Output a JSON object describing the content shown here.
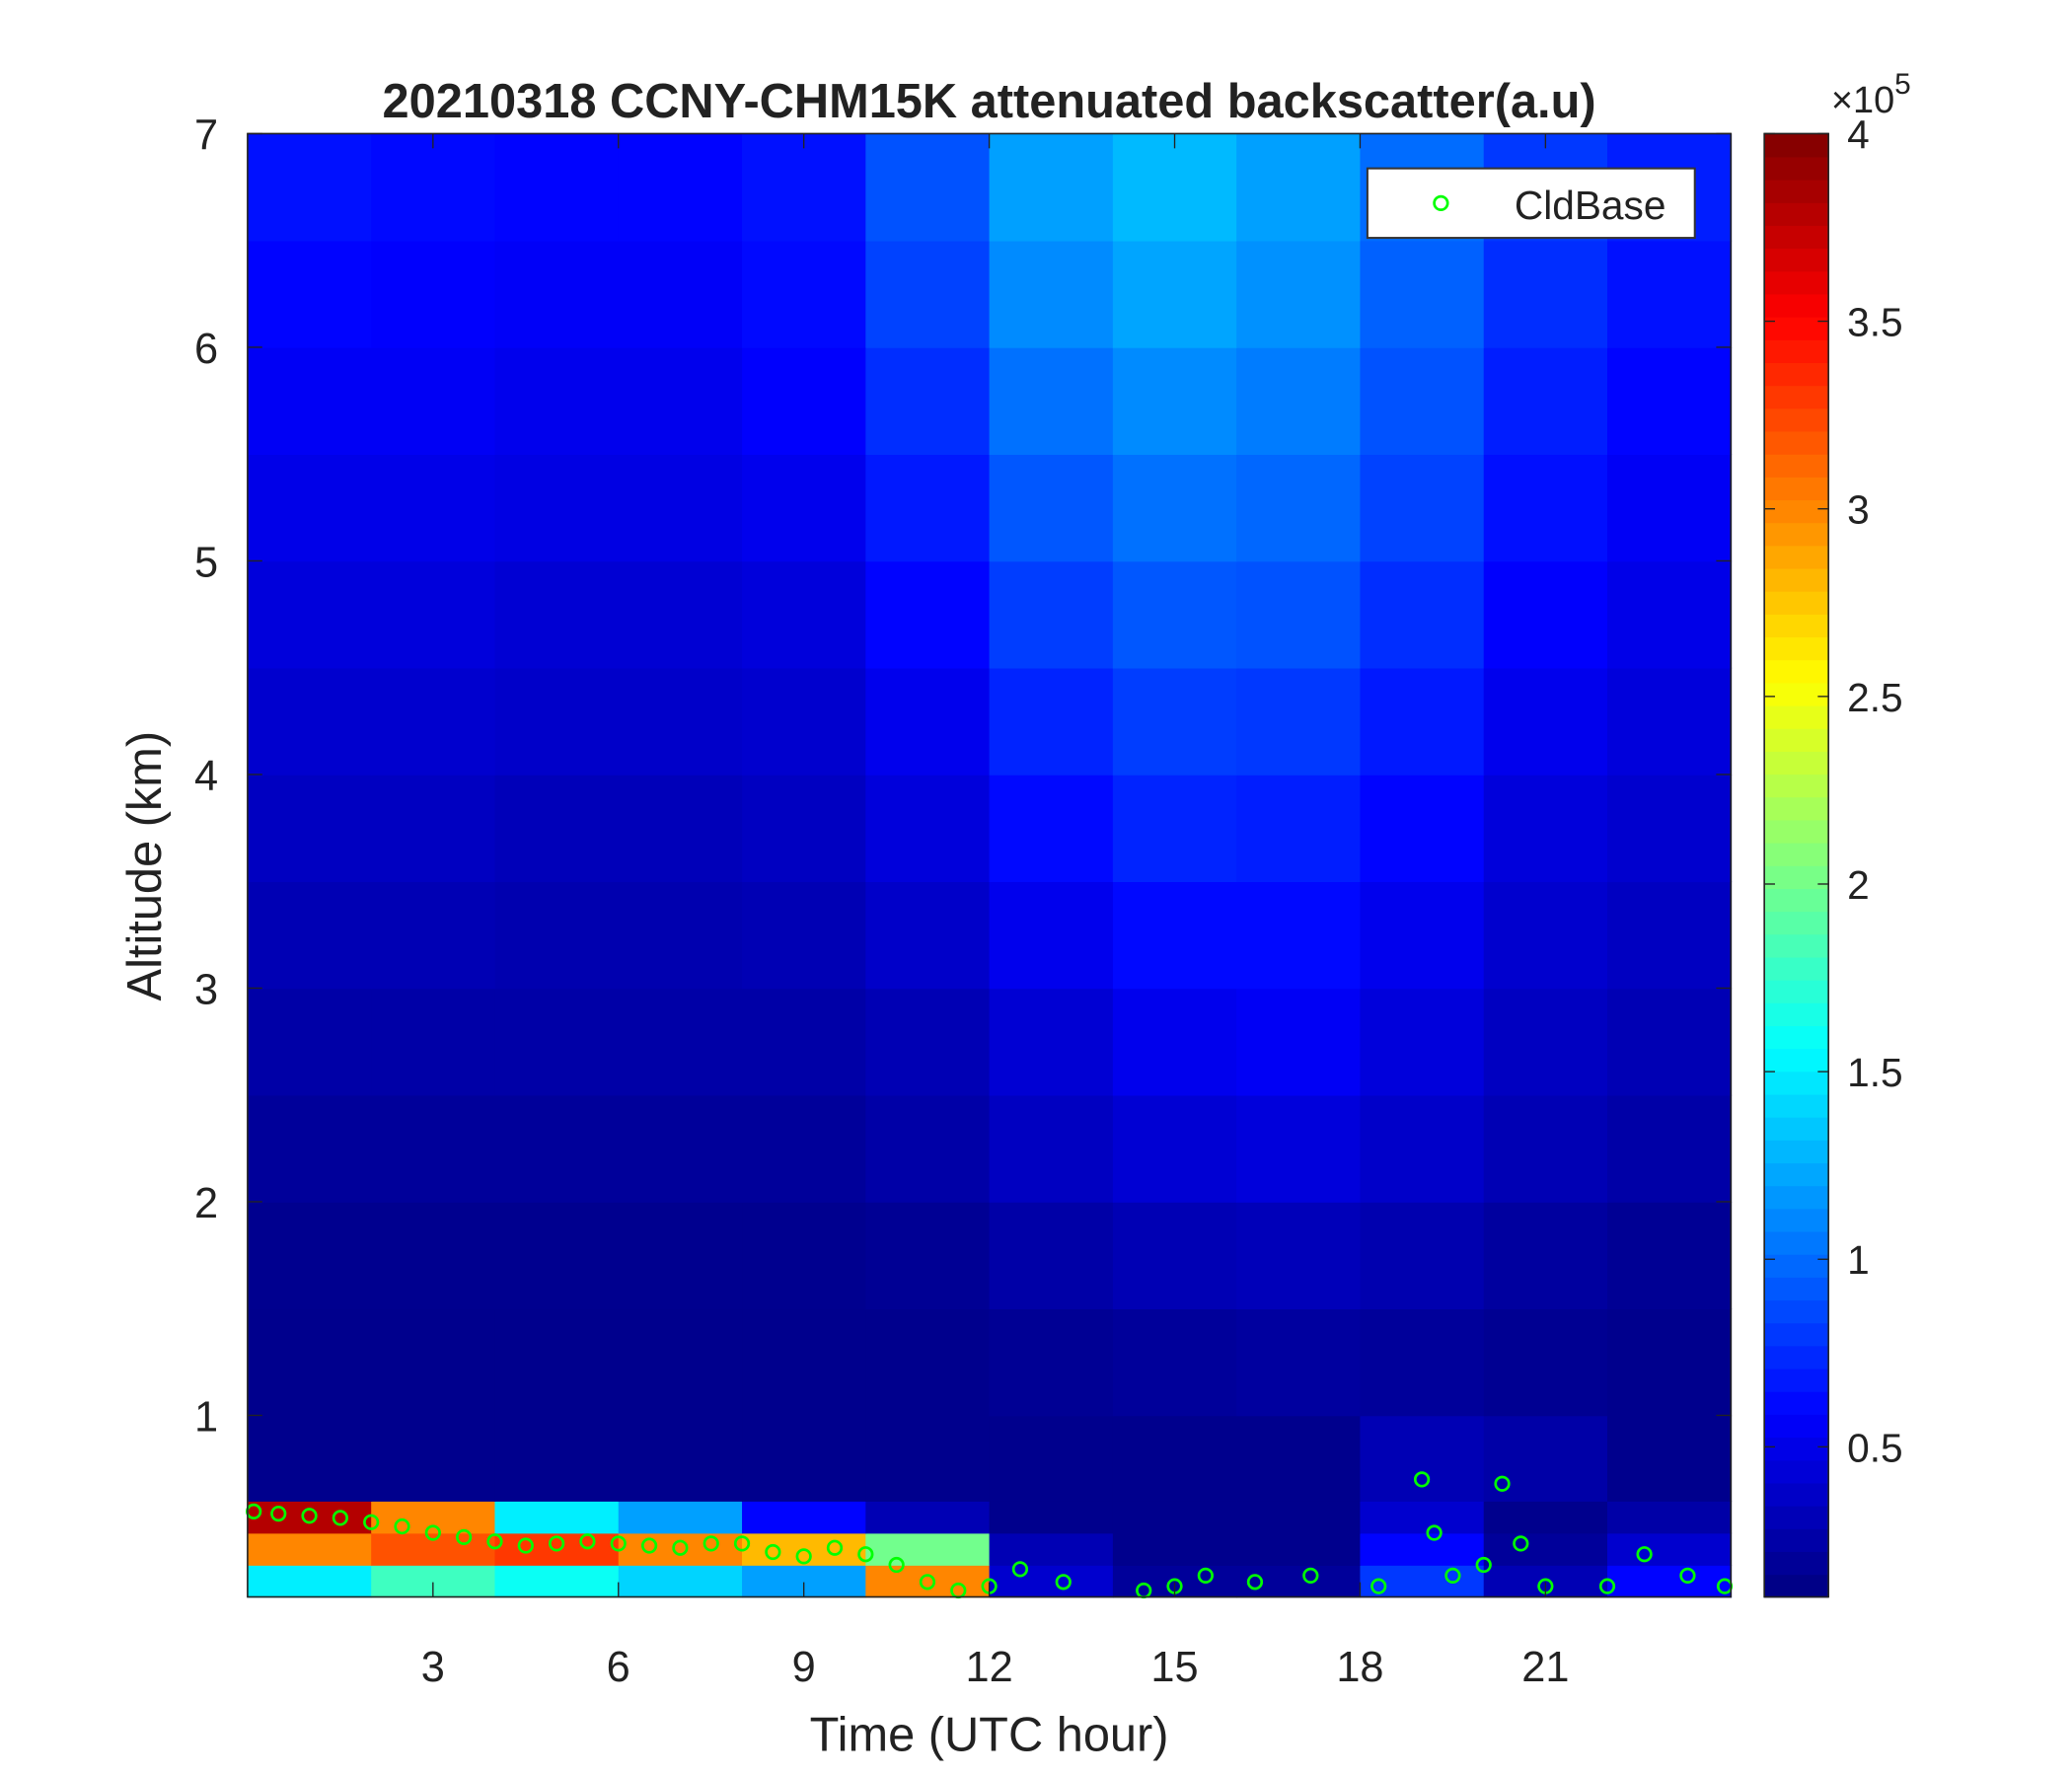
{
  "chart_data": {
    "type": "heatmap",
    "title": "20210318 CCNY-CHM15K attenuated backscatter(a.u)",
    "x_label": "Time (UTC hour)",
    "y_label": "Altitude (km)",
    "xlim": [
      0,
      24
    ],
    "xticks": [
      3,
      6,
      9,
      12,
      15,
      18,
      21
    ],
    "ylim": [
      0.15,
      7
    ],
    "yticks": [
      1,
      2,
      3,
      4,
      5,
      6,
      7
    ],
    "colormap": "jet",
    "clim": [
      10000,
      400000
    ],
    "cticks": [
      {
        "value": 50000,
        "label": "0.5"
      },
      {
        "value": 100000,
        "label": "1"
      },
      {
        "value": 150000,
        "label": "1.5"
      },
      {
        "value": 200000,
        "label": "2"
      },
      {
        "value": 250000,
        "label": "2.5"
      },
      {
        "value": 300000,
        "label": "3"
      },
      {
        "value": 350000,
        "label": "3.5"
      },
      {
        "value": 400000,
        "label": "4"
      }
    ],
    "colorbar_scale_base": "×10",
    "colorbar_scale_exponent": "5",
    "x_edges": [
      0,
      2,
      4,
      6,
      8,
      10,
      12,
      14,
      16,
      18,
      20,
      22,
      24
    ],
    "y_edges": [
      0.15,
      0.3,
      0.45,
      0.6,
      1,
      1.5,
      2,
      2.5,
      3,
      3.5,
      4,
      4.5,
      5,
      5.5,
      6,
      6.5,
      7
    ],
    "z": [
      [
        150000,
        180000,
        160000,
        140000,
        120000,
        300000,
        40000,
        20000,
        20000,
        80000,
        30000,
        60000
      ],
      [
        300000,
        320000,
        330000,
        300000,
        280000,
        200000,
        30000,
        15000,
        15000,
        60000,
        20000,
        40000
      ],
      [
        380000,
        300000,
        150000,
        120000,
        60000,
        30000,
        15000,
        15000,
        15000,
        40000,
        15000,
        25000
      ],
      [
        15000,
        15000,
        15000,
        15000,
        15000,
        15000,
        15000,
        15000,
        15000,
        30000,
        25000,
        15000
      ],
      [
        15000,
        15000,
        15000,
        15000,
        15000,
        15000,
        18000,
        20000,
        22000,
        20000,
        17000,
        15000
      ],
      [
        16000,
        16000,
        16000,
        16000,
        16000,
        18000,
        25000,
        30000,
        32000,
        28000,
        22000,
        18000
      ],
      [
        20000,
        20000,
        20000,
        20000,
        20000,
        25000,
        35000,
        42000,
        45000,
        38000,
        30000,
        25000
      ],
      [
        25000,
        25000,
        25000,
        25000,
        25000,
        30000,
        42000,
        52000,
        55000,
        45000,
        35000,
        30000
      ],
      [
        30000,
        30000,
        28000,
        28000,
        30000,
        38000,
        52000,
        62000,
        62000,
        52000,
        40000,
        35000
      ],
      [
        35000,
        35000,
        32000,
        32000,
        35000,
        45000,
        62000,
        72000,
        70000,
        60000,
        45000,
        40000
      ],
      [
        40000,
        40000,
        38000,
        38000,
        40000,
        52000,
        72000,
        82000,
        80000,
        68000,
        52000,
        45000
      ],
      [
        45000,
        45000,
        42000,
        42000,
        45000,
        60000,
        82000,
        92000,
        90000,
        76000,
        58000,
        50000
      ],
      [
        50000,
        50000,
        48000,
        48000,
        52000,
        68000,
        92000,
        102000,
        98000,
        84000,
        64000,
        55000
      ],
      [
        55000,
        55000,
        52000,
        52000,
        58000,
        76000,
        102000,
        112000,
        106000,
        90000,
        70000,
        60000
      ],
      [
        60000,
        58000,
        56000,
        56000,
        62000,
        84000,
        112000,
        122000,
        114000,
        96000,
        76000,
        65000
      ],
      [
        65000,
        62000,
        60000,
        60000,
        65000,
        90000,
        120000,
        130000,
        120000,
        100000,
        80000,
        70000
      ]
    ],
    "series": [
      {
        "name": "CldBase",
        "color": "#00ff00",
        "x": [
          0.1,
          0.5,
          1,
          1.5,
          2,
          2.5,
          3,
          3.5,
          4,
          4.5,
          5,
          5.5,
          6,
          6.5,
          7,
          7.5,
          8,
          8.5,
          9,
          9.5,
          10,
          10.5,
          11,
          11.5,
          12,
          12.5,
          13.2,
          14.5,
          15,
          15.5,
          16.3,
          17.2,
          18.3,
          19,
          19.2,
          19.5,
          20,
          20.3,
          20.6,
          21,
          22,
          22.6,
          23.3,
          23.9
        ],
        "values": [
          0.55,
          0.54,
          0.53,
          0.52,
          0.5,
          0.48,
          0.45,
          0.43,
          0.41,
          0.39,
          0.4,
          0.41,
          0.4,
          0.39,
          0.38,
          0.4,
          0.4,
          0.36,
          0.34,
          0.38,
          0.35,
          0.3,
          0.22,
          0.18,
          0.2,
          0.28,
          0.22,
          0.18,
          0.2,
          0.25,
          0.22,
          0.25,
          0.2,
          0.7,
          0.45,
          0.25,
          0.3,
          0.68,
          0.4,
          0.2,
          0.2,
          0.35,
          0.25,
          0.2
        ]
      }
    ],
    "legend": "upper right"
  }
}
